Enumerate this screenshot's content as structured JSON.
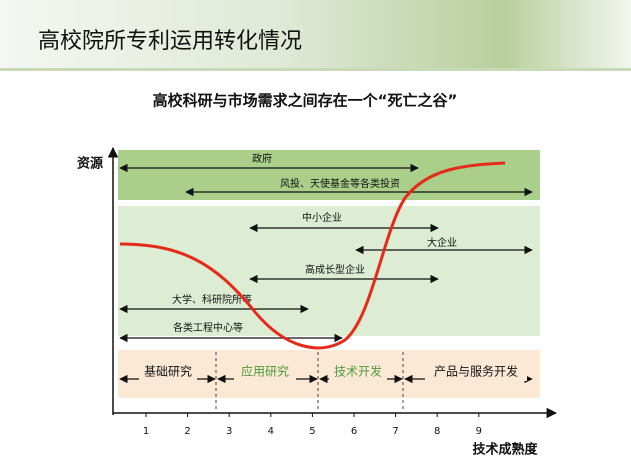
{
  "header": {
    "title": "高校院所专利运用转化情况"
  },
  "subtitle": "高校科研与市场需求之间存在一个“死亡之谷”",
  "axis": {
    "y_label": "资源",
    "x_label": "技术成熟度",
    "ticks": [
      1,
      2,
      3,
      4,
      5,
      6,
      7,
      8,
      9
    ]
  },
  "arrows": [
    {
      "label": "政府"
    },
    {
      "label": "风投、天使基金等各类投资"
    },
    {
      "label": "中小企业"
    },
    {
      "label": "大企业"
    },
    {
      "label": "高成长型企业"
    },
    {
      "label": "大学、科研院所等"
    },
    {
      "label": "各类工程中心等"
    }
  ],
  "stages": [
    "基础研究",
    "应用研究",
    "技术开发",
    "产品与服务开发"
  ]
}
